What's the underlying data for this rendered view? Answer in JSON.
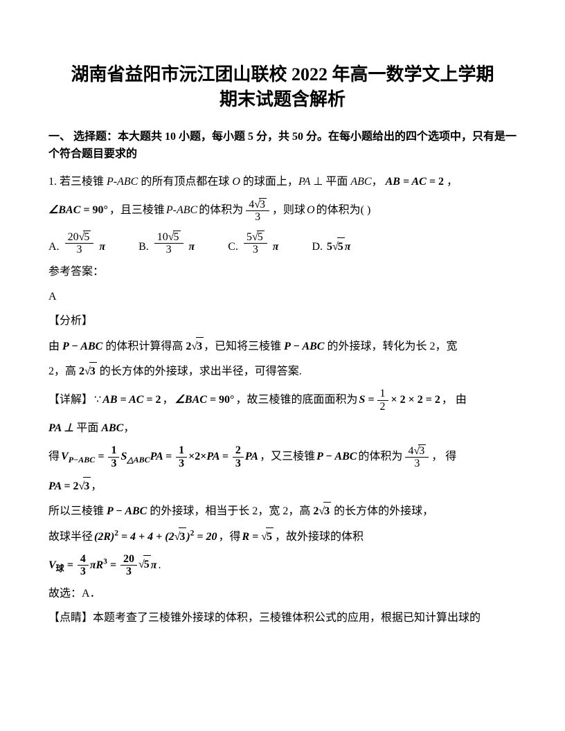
{
  "title_line1": "湖南省益阳市沅江团山联校 2022 年高一数学文上学期",
  "title_line2": "期末试题含解析",
  "section1": "一、 选择题：本大题共 10 小题，每小题 5 分，共 50 分。在每小题给出的四个选项中，只有是一个符合题目要求的",
  "q1": {
    "stem_a": "1. 若三棱锥 ",
    "pabc": "P-ABC",
    "stem_b": " 的所有顶点都在球 ",
    "O": "O",
    "stem_c": " 的球面上，",
    "PA": "PA",
    "perp": " ⊥ 平面 ",
    "ABC": "ABC",
    "comma": "，",
    "eq1": "AB = AC = 2",
    "bac": "∠BAC = 90°",
    "stem_d": "，且三棱锥 ",
    "stem_e": " 的体积为 ",
    "vol_num": "4√3",
    "vol_den": "3",
    "stem_f": "，则球 ",
    "stem_g": " 的体积为(   )"
  },
  "options": {
    "A": "A.",
    "A_num": "20√5",
    "A_den": "3",
    "pi": "π",
    "B": "B.",
    "B_num": "10√5",
    "B_den": "3",
    "C": "C.",
    "C_num": "5√5",
    "C_den": "3",
    "D": "D.",
    "D_val": "5√5π"
  },
  "ref_answer_label": "参考答案：",
  "ref_answer": "A",
  "analysis_label": "【分析】",
  "analysis": {
    "a1": "由 ",
    "pabc_b": "P − ABC",
    "a2": " 的体积计算得高 ",
    "h23": "2√3",
    "a3": "，已知将三棱锥 ",
    "a4": " 的外接球，转化为长 2，宽",
    "a5": "2，高 ",
    "a6": " 的长方体的外接球，求出半径，可得答案."
  },
  "detail_label": "【详解】",
  "detail": {
    "because": "∵ ",
    "eq_abac": "AB = AC = 2",
    "c1": "，",
    "eq_bac": "∠BAC = 90°",
    "t1": "，故三棱锥的底面面积为 ",
    "s_eq_lhs": "S",
    "s_eq": " = ",
    "half": "1",
    "half_den": "2",
    "times222": " × 2 × 2 = 2",
    "by": "， 由",
    "pa_perp": "PA ⊥ ",
    "plane": "平面 ",
    "abc_b": "ABC",
    "t2": "得",
    "vp_lhs": "V",
    "vp_sub": "P−ABC",
    "eq": " = ",
    "one3": "1",
    "three": "3",
    "s_tri": "S",
    "tri_sub": "△ABC",
    "pa": "PA",
    "mid": " = ",
    "two": "2",
    "t3": "，又三棱锥 ",
    "pabc_b2": "P − ABC",
    "t4": " 的体积为 ",
    "v_num": "4√3",
    "v_den": "3",
    "t5": "，  得",
    "pa_eq": "PA = 2√3",
    "t6": "所以三棱锥 ",
    "t7": " 的外接球，相当于长 2，宽 2，高 ",
    "t8": " 的长方体的外接球，",
    "t9": "故球半径 ",
    "rad_eq": "(2R)² = 4 + 4 + (2√3)² = 20",
    "t10": "，得 ",
    "r_eq": "R = √5",
    "t11": "，故外接球的体积",
    "vball_lhs": "V",
    "vball_sub": "球",
    "four": "4",
    "pir3": "πR³",
    "twenty": "20",
    "sqrt5pi": "√5π",
    "dot": "."
  },
  "therefore": "故选：A．",
  "comment_label": "【点睛】",
  "comment": "本题考查了三棱锥外接球的体积，三棱锥体积公式的应用，根据已知计算出球的",
  "colors": {
    "text": "#000000",
    "bg": "#ffffff"
  },
  "fontsize": {
    "title": 26,
    "body": 16
  }
}
